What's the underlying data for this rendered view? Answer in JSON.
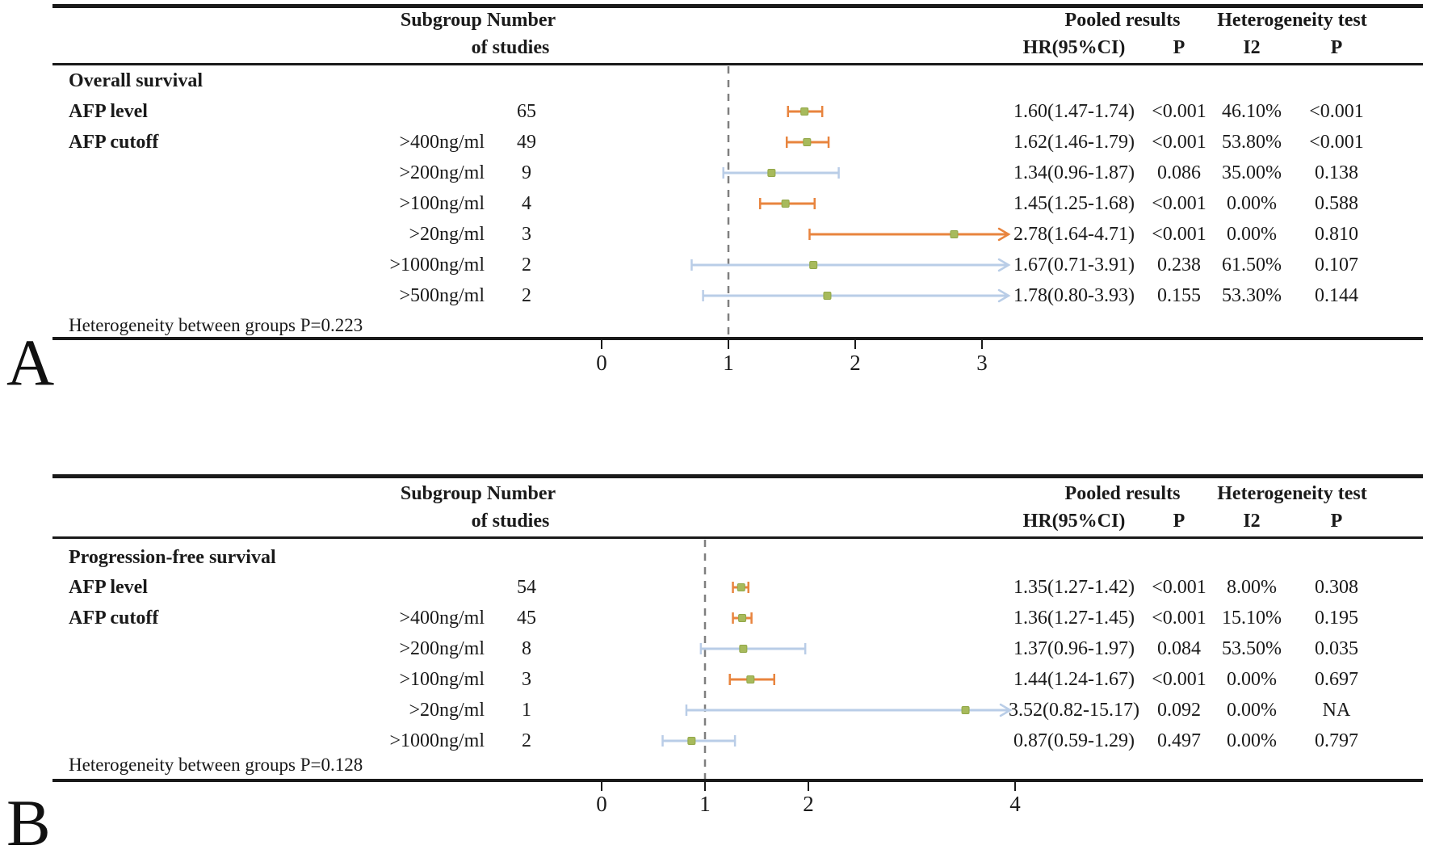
{
  "figure": {
    "panel_a_letter": "A",
    "panel_b_letter": "B"
  },
  "header": {
    "subgroup_number": "Subgroup Number",
    "of_studies": "of studies",
    "pooled_results": "Pooled results",
    "heterogeneity_test": "Heterogeneity test",
    "hr_ci": "HR(95%CI)",
    "p": "P",
    "i2": "I2",
    "p2": "P"
  },
  "colors": {
    "significant": "#E8843E",
    "nonsignificant": "#B9CDE7",
    "marker": "#A7BA5C",
    "marker_border": "#91A748",
    "ref_line": "#7F7F7F",
    "axis": "#1a1a1a"
  },
  "chart_data": [
    {
      "type": "forest",
      "panel": "A",
      "section_title": "Overall survival",
      "xlabel": "HR",
      "ref_line": 1,
      "x_ticks": [
        "0",
        "1",
        "2",
        "3"
      ],
      "footer": "Heterogeneity between groups P=0.223",
      "rows": [
        {
          "label": "AFP level",
          "cutoff": "",
          "n": "65",
          "hr": 1.6,
          "ci_low": 1.47,
          "ci_high": 1.74,
          "hr_text": "1.60(1.47-1.74)",
          "p": "<0.001",
          "i2": "46.10%",
          "p_het": "<0.001",
          "significant": true
        },
        {
          "label": "AFP cutoff",
          "cutoff": ">400ng/ml",
          "n": "49",
          "hr": 1.62,
          "ci_low": 1.46,
          "ci_high": 1.79,
          "hr_text": "1.62(1.46-1.79)",
          "p": "<0.001",
          "i2": "53.80%",
          "p_het": "<0.001",
          "significant": true
        },
        {
          "label": "",
          "cutoff": ">200ng/ml",
          "n": "9",
          "hr": 1.34,
          "ci_low": 0.96,
          "ci_high": 1.87,
          "hr_text": "1.34(0.96-1.87)",
          "p": "0.086",
          "i2": "35.00%",
          "p_het": "0.138",
          "significant": false
        },
        {
          "label": "",
          "cutoff": ">100ng/ml",
          "n": "4",
          "hr": 1.45,
          "ci_low": 1.25,
          "ci_high": 1.68,
          "hr_text": "1.45(1.25-1.68)",
          "p": "<0.001",
          "i2": "0.00%",
          "p_het": "0.588",
          "significant": true
        },
        {
          "label": "",
          "cutoff": ">20ng/ml",
          "n": "3",
          "hr": 2.78,
          "ci_low": 1.64,
          "ci_high": 4.71,
          "hr_text": "2.78(1.64-4.71)",
          "p": "<0.001",
          "i2": "0.00%",
          "p_het": "0.810",
          "significant": true
        },
        {
          "label": "",
          "cutoff": ">1000ng/ml",
          "n": "2",
          "hr": 1.67,
          "ci_low": 0.71,
          "ci_high": 3.91,
          "hr_text": "1.67(0.71-3.91)",
          "p": "0.238",
          "i2": "61.50%",
          "p_het": "0.107",
          "significant": false
        },
        {
          "label": "",
          "cutoff": ">500ng/ml",
          "n": "2",
          "hr": 1.78,
          "ci_low": 0.8,
          "ci_high": 3.93,
          "hr_text": "1.78(0.80-3.93)",
          "p": "0.155",
          "i2": "53.30%",
          "p_het": "0.144",
          "significant": false
        }
      ]
    },
    {
      "type": "forest",
      "panel": "B",
      "section_title": "Progression-free survival",
      "xlabel": "HR",
      "ref_line": 1,
      "x_ticks": [
        "0",
        "1",
        "2",
        "4"
      ],
      "footer": "Heterogeneity between groups P=0.128",
      "rows": [
        {
          "label": "AFP level",
          "cutoff": "",
          "n": "54",
          "hr": 1.35,
          "ci_low": 1.27,
          "ci_high": 1.42,
          "hr_text": "1.35(1.27-1.42)",
          "p": "<0.001",
          "i2": "8.00%",
          "p_het": "0.308",
          "significant": true
        },
        {
          "label": "AFP cutoff",
          "cutoff": ">400ng/ml",
          "n": "45",
          "hr": 1.36,
          "ci_low": 1.27,
          "ci_high": 1.45,
          "hr_text": "1.36(1.27-1.45)",
          "p": "<0.001",
          "i2": "15.10%",
          "p_het": "0.195",
          "significant": true
        },
        {
          "label": "",
          "cutoff": ">200ng/ml",
          "n": "8",
          "hr": 1.37,
          "ci_low": 0.96,
          "ci_high": 1.97,
          "hr_text": "1.37(0.96-1.97)",
          "p": "0.084",
          "i2": "53.50%",
          "p_het": "0.035",
          "significant": false
        },
        {
          "label": "",
          "cutoff": ">100ng/ml",
          "n": "3",
          "hr": 1.44,
          "ci_low": 1.24,
          "ci_high": 1.67,
          "hr_text": "1.44(1.24-1.67)",
          "p": "<0.001",
          "i2": "0.00%",
          "p_het": "0.697",
          "significant": true
        },
        {
          "label": "",
          "cutoff": ">20ng/ml",
          "n": "1",
          "hr": 3.52,
          "ci_low": 0.82,
          "ci_high": 15.17,
          "hr_text": "3.52(0.82-15.17)",
          "p": "0.092",
          "i2": "0.00%",
          "p_het": "NA",
          "significant": false
        },
        {
          "label": "",
          "cutoff": ">1000ng/ml",
          "n": "2",
          "hr": 0.87,
          "ci_low": 0.59,
          "ci_high": 1.29,
          "hr_text": "0.87(0.59-1.29)",
          "p": "0.497",
          "i2": "0.00%",
          "p_het": "0.797",
          "significant": false
        }
      ]
    }
  ]
}
